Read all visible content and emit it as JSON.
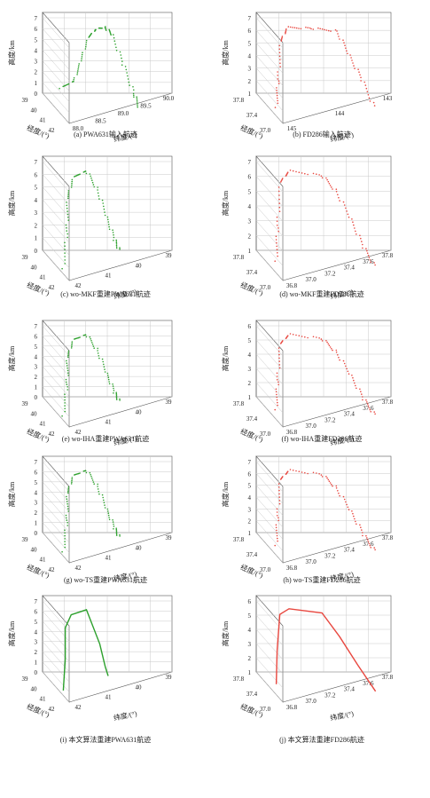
{
  "figure": {
    "colors": {
      "green": "#2ca02c",
      "red": "#e8473f",
      "grid": "#c8c8c8",
      "axis": "#555555"
    }
  },
  "chart_data": [
    {
      "id": "a",
      "type": "scatter",
      "subtype": "3d-trajectory",
      "color": "green",
      "caption": "(a) PWA631输入航迹",
      "zlabel": "高度/km",
      "xlabel": "纬度/(°)",
      "ylabel": "经度/(°)",
      "zlim": [
        0,
        7.5
      ],
      "zticks": [
        "0",
        "1",
        "2",
        "3",
        "4",
        "5",
        "6",
        "7"
      ],
      "xticks": [
        "88.0",
        "88.5",
        "89.0",
        "89.5",
        "90.0"
      ],
      "yticks": [
        "39",
        "40",
        "41",
        "42"
      ],
      "style": "dots",
      "series": [
        {
          "values": [
            [
              0.0,
              0.3
            ],
            [
              0.15,
              0.38
            ],
            [
              0.25,
              0.6
            ],
            [
              0.35,
              0.85
            ],
            [
              0.45,
              0.95
            ],
            [
              0.55,
              0.98
            ],
            [
              0.62,
              0.9
            ],
            [
              0.7,
              0.6
            ],
            [
              0.78,
              0.3
            ],
            [
              0.82,
              0.15
            ]
          ]
        }
      ]
    },
    {
      "id": "b",
      "type": "scatter",
      "subtype": "3d-trajectory",
      "color": "red",
      "caption": "(b) FD286输入航迹",
      "zlabel": "高度/km",
      "xlabel": "纬度/(°)",
      "ylabel": "经度/(°)",
      "zlim": [
        0,
        7
      ],
      "zticks": [
        "1",
        "2",
        "3",
        "4",
        "5",
        "6",
        "7"
      ],
      "xticks": [
        "145",
        "144",
        "143"
      ],
      "yticks": [
        "37.8",
        "37.4",
        "37.0"
      ],
      "style": "dots",
      "series": [
        {
          "values": [
            [
              0.0,
              0.1
            ],
            [
              0.05,
              0.4
            ],
            [
              0.12,
              0.8
            ],
            [
              0.2,
              0.95
            ],
            [
              0.45,
              0.96
            ],
            [
              0.7,
              0.95
            ],
            [
              0.8,
              0.7
            ],
            [
              0.9,
              0.45
            ],
            [
              1.0,
              0.15
            ]
          ]
        }
      ]
    },
    {
      "id": "c",
      "type": "scatter",
      "subtype": "3d-trajectory",
      "color": "green",
      "caption": "(c) wo-MKF重建PWA631航迹",
      "zlabel": "高度/km",
      "xlabel": "纬度/(°)",
      "ylabel": "经度/(°)",
      "zlim": [
        0,
        7.5
      ],
      "zticks": [
        "0",
        "1",
        "2",
        "3",
        "4",
        "5",
        "6",
        "7"
      ],
      "xticks": [
        "42",
        "41",
        "40",
        "39"
      ],
      "yticks": [
        "39",
        "40",
        "41",
        "42"
      ],
      "style": "dots",
      "series": [
        {
          "values": [
            [
              0.0,
              0.05
            ],
            [
              0.08,
              0.4
            ],
            [
              0.12,
              0.7
            ],
            [
              0.2,
              0.9
            ],
            [
              0.35,
              0.97
            ],
            [
              0.45,
              0.8
            ],
            [
              0.52,
              0.55
            ],
            [
              0.58,
              0.35
            ],
            [
              0.62,
              0.25
            ]
          ]
        }
      ]
    },
    {
      "id": "d",
      "type": "scatter",
      "subtype": "3d-trajectory",
      "color": "red",
      "caption": "(d) wo-MKF重建FD286航迹",
      "zlabel": "高度/km",
      "xlabel": "纬度/(°)",
      "ylabel": "经度/(°)",
      "zlim": [
        0,
        7
      ],
      "zticks": [
        "1",
        "2",
        "3",
        "4",
        "5",
        "6",
        "7"
      ],
      "xticks": [
        "36.8",
        "37.0",
        "37.2",
        "37.4",
        "37.6",
        "37.8"
      ],
      "yticks": [
        "37.8",
        "37.4",
        "37.0"
      ],
      "style": "dots",
      "series": [
        {
          "values": [
            [
              0.0,
              0.12
            ],
            [
              0.05,
              0.45
            ],
            [
              0.12,
              0.85
            ],
            [
              0.22,
              0.96
            ],
            [
              0.55,
              0.94
            ],
            [
              0.68,
              0.8
            ],
            [
              0.8,
              0.55
            ],
            [
              0.9,
              0.3
            ],
            [
              1.0,
              0.12
            ]
          ]
        }
      ]
    },
    {
      "id": "e",
      "type": "scatter",
      "subtype": "3d-trajectory",
      "color": "green",
      "caption": "(e) wo-IHA重建PWA631航迹",
      "zlabel": "高度/km",
      "xlabel": "纬度/(°)",
      "ylabel": "经度/(°)",
      "zlim": [
        0,
        7.5
      ],
      "zticks": [
        "0",
        "1",
        "2",
        "3",
        "4",
        "5",
        "6",
        "7"
      ],
      "xticks": [
        "42",
        "41",
        "40",
        "39"
      ],
      "yticks": [
        "39",
        "40",
        "41",
        "42"
      ],
      "style": "dots",
      "series": [
        {
          "values": [
            [
              0.0,
              0.05
            ],
            [
              0.08,
              0.4
            ],
            [
              0.12,
              0.7
            ],
            [
              0.2,
              0.9
            ],
            [
              0.35,
              0.97
            ],
            [
              0.45,
              0.8
            ],
            [
              0.52,
              0.55
            ],
            [
              0.58,
              0.35
            ],
            [
              0.62,
              0.25
            ]
          ]
        }
      ]
    },
    {
      "id": "f",
      "type": "scatter",
      "subtype": "3d-trajectory",
      "color": "red",
      "caption": "(f) wo-IHA重建FD286航迹",
      "zlabel": "高度/km",
      "xlabel": "纬度/(°)",
      "ylabel": "经度/(°)",
      "zlim": [
        0,
        7
      ],
      "zticks": [
        "1",
        "2",
        "3",
        "4",
        "5",
        "6"
      ],
      "xticks": [
        "36.8",
        "37.0",
        "37.2",
        "37.4",
        "37.6",
        "37.8"
      ],
      "yticks": [
        "37.8",
        "37.4",
        "37.0"
      ],
      "style": "dots",
      "series": [
        {
          "values": [
            [
              0.0,
              0.12
            ],
            [
              0.05,
              0.45
            ],
            [
              0.12,
              0.85
            ],
            [
              0.22,
              0.96
            ],
            [
              0.55,
              0.94
            ],
            [
              0.68,
              0.8
            ],
            [
              0.8,
              0.55
            ],
            [
              0.9,
              0.3
            ],
            [
              1.0,
              0.12
            ]
          ]
        }
      ]
    },
    {
      "id": "g",
      "type": "scatter",
      "subtype": "3d-trajectory",
      "color": "green",
      "caption": "(g) wo-TS重建PWA631航迹",
      "zlabel": "高度/km",
      "xlabel": "纬度/(°)",
      "ylabel": "经度/(°)",
      "zlim": [
        0,
        7.5
      ],
      "zticks": [
        "0",
        "1",
        "2",
        "3",
        "4",
        "5",
        "6",
        "7"
      ],
      "xticks": [
        "42",
        "41",
        "40",
        "39"
      ],
      "yticks": [
        "39",
        "40",
        "41",
        "42"
      ],
      "style": "dots",
      "series": [
        {
          "values": [
            [
              0.0,
              0.05
            ],
            [
              0.08,
              0.4
            ],
            [
              0.12,
              0.7
            ],
            [
              0.2,
              0.9
            ],
            [
              0.35,
              0.97
            ],
            [
              0.45,
              0.8
            ],
            [
              0.52,
              0.55
            ],
            [
              0.58,
              0.35
            ],
            [
              0.62,
              0.25
            ]
          ]
        }
      ]
    },
    {
      "id": "h",
      "type": "scatter",
      "subtype": "3d-trajectory",
      "color": "red",
      "caption": "(h) wo-TS重建FD286航迹",
      "zlabel": "高度/km",
      "xlabel": "纬度/(°)",
      "ylabel": "经度/(°)",
      "zlim": [
        0,
        7.5
      ],
      "zticks": [
        "1",
        "2",
        "3",
        "4",
        "5",
        "6",
        "7"
      ],
      "xticks": [
        "36.8",
        "37.0",
        "37.2",
        "37.4",
        "37.6",
        "37.8"
      ],
      "yticks": [
        "37.8",
        "37.4",
        "37.0"
      ],
      "style": "dots",
      "series": [
        {
          "values": [
            [
              0.0,
              0.12
            ],
            [
              0.05,
              0.45
            ],
            [
              0.12,
              0.85
            ],
            [
              0.22,
              0.96
            ],
            [
              0.55,
              0.94
            ],
            [
              0.68,
              0.8
            ],
            [
              0.8,
              0.55
            ],
            [
              0.9,
              0.3
            ],
            [
              1.0,
              0.12
            ]
          ]
        }
      ]
    },
    {
      "id": "i",
      "type": "line",
      "subtype": "3d-trajectory",
      "color": "green",
      "caption": "(i) 本文算法重建PWA631航迹",
      "zlabel": "高度/km",
      "xlabel": "纬度/(°)",
      "ylabel": "经度/(°)",
      "zlim": [
        0,
        7.5
      ],
      "zticks": [
        "0",
        "1",
        "2",
        "3",
        "4",
        "5",
        "6",
        "7"
      ],
      "xticks": [
        "42",
        "41",
        "40",
        "39"
      ],
      "yticks": [
        "39",
        "40",
        "41",
        "42"
      ],
      "style": "line",
      "series": [
        {
          "values": [
            [
              0.0,
              0.05
            ],
            [
              0.06,
              0.4
            ],
            [
              0.1,
              0.75
            ],
            [
              0.18,
              0.9
            ],
            [
              0.35,
              0.97
            ],
            [
              0.45,
              0.6
            ],
            [
              0.48,
              0.35
            ],
            [
              0.5,
              0.25
            ]
          ]
        }
      ]
    },
    {
      "id": "j",
      "type": "line",
      "subtype": "3d-trajectory",
      "color": "red",
      "caption": "(j) 本文算法重建FD286航迹",
      "zlabel": "高度/km",
      "xlabel": "纬度/(°)",
      "ylabel": "经度/(°)",
      "zlim": [
        0,
        7
      ],
      "zticks": [
        "1",
        "2",
        "3",
        "4",
        "5",
        "6"
      ],
      "xticks": [
        "36.8",
        "37.0",
        "37.2",
        "37.4",
        "37.6",
        "37.8"
      ],
      "yticks": [
        "37.8",
        "37.4",
        "37.0"
      ],
      "style": "line",
      "series": [
        {
          "values": [
            [
              0.0,
              0.12
            ],
            [
              0.05,
              0.5
            ],
            [
              0.12,
              0.9
            ],
            [
              0.22,
              0.97
            ],
            [
              0.55,
              0.95
            ],
            [
              0.7,
              0.7
            ],
            [
              0.85,
              0.4
            ],
            [
              1.0,
              0.12
            ]
          ]
        }
      ]
    }
  ]
}
